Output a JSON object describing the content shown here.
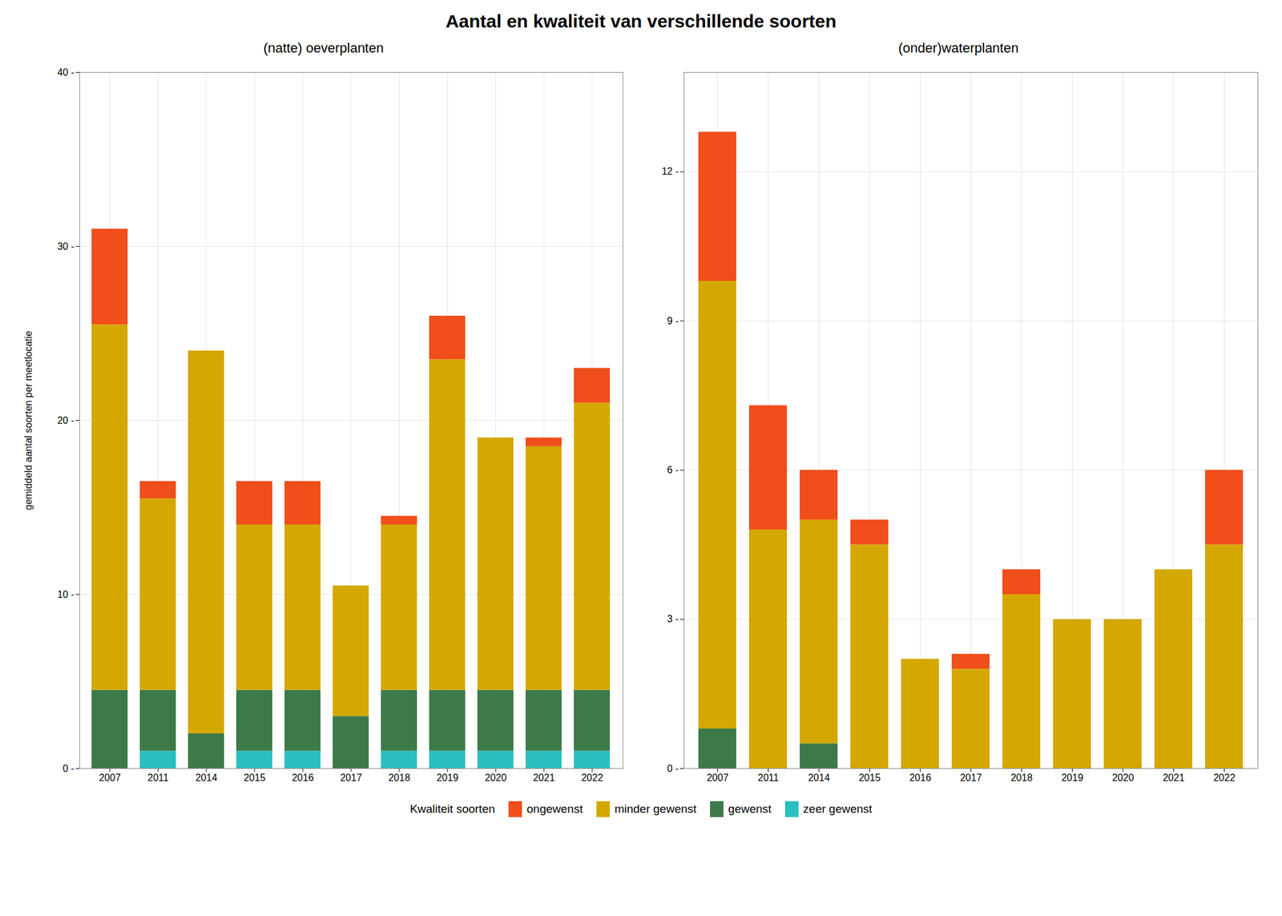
{
  "chart_data": [
    {
      "type": "bar",
      "stacked": true,
      "title": "Aantal en kwaliteit van verschillende soorten",
      "subtitle": "(natte) oeverplanten",
      "ylabel": "gemiddeld aantal soorten per meetlocatie",
      "legend": "bottom",
      "legend_title": "Kwaliteit soorten",
      "grid": true,
      "categories": [
        "2007",
        "2011",
        "2014",
        "2015",
        "2016",
        "2017",
        "2018",
        "2019",
        "2020",
        "2021",
        "2022"
      ],
      "series": [
        {
          "name": "zeer gewenst",
          "color": "#2BBFBF",
          "values": [
            0.0,
            1.0,
            0.0,
            1.0,
            1.0,
            0.0,
            1.0,
            1.0,
            1.0,
            1.0,
            1.0
          ]
        },
        {
          "name": "gewenst",
          "color": "#3D7A4A",
          "values": [
            4.5,
            3.5,
            2.0,
            3.5,
            3.5,
            3.0,
            3.5,
            3.5,
            3.5,
            3.5,
            3.5
          ]
        },
        {
          "name": "minder gewenst",
          "color": "#D4A800",
          "values": [
            21.0,
            11.0,
            22.0,
            9.5,
            9.5,
            7.5,
            9.5,
            19.0,
            14.5,
            14.0,
            16.5
          ]
        },
        {
          "name": "ongewenst",
          "color": "#F04E1A",
          "values": [
            5.5,
            1.0,
            0.0,
            2.5,
            2.5,
            0.0,
            0.5,
            2.5,
            0.0,
            0.5,
            2.0
          ]
        }
      ],
      "ylim": [
        0,
        40
      ],
      "yticks": [
        {
          "value": 0,
          "label": "0 -"
        },
        {
          "value": 10,
          "label": "10 -"
        },
        {
          "value": 20,
          "label": "20 -"
        },
        {
          "value": 30,
          "label": "30 -"
        },
        {
          "value": 40,
          "label": "40 -"
        }
      ]
    },
    {
      "type": "bar",
      "stacked": true,
      "subtitle": "(onder)waterplanten",
      "grid": true,
      "categories": [
        "2007",
        "2011",
        "2014",
        "2015",
        "2016",
        "2017",
        "2018",
        "2019",
        "2020",
        "2021",
        "2022"
      ],
      "series": [
        {
          "name": "zeer gewenst",
          "color": "#2BBFBF",
          "values": [
            0.0,
            0.0,
            0.0,
            0.0,
            0.0,
            0.0,
            0.0,
            0.0,
            0.0,
            0.0,
            0.0
          ]
        },
        {
          "name": "gewenst",
          "color": "#3D7A4A",
          "values": [
            0.8,
            0.0,
            0.5,
            0.0,
            0.0,
            0.0,
            0.0,
            0.0,
            0.0,
            0.0,
            0.0
          ]
        },
        {
          "name": "minder gewenst",
          "color": "#D4A800",
          "values": [
            9.0,
            4.8,
            4.5,
            4.5,
            2.2,
            2.0,
            3.5,
            3.0,
            3.0,
            4.0,
            4.5
          ]
        },
        {
          "name": "ongewenst",
          "color": "#F04E1A",
          "values": [
            3.0,
            2.5,
            1.0,
            0.5,
            0.0,
            0.3,
            0.5,
            0.0,
            0.0,
            0.0,
            1.5
          ]
        }
      ],
      "ylim": [
        0,
        14
      ],
      "yticks": [
        {
          "value": 0,
          "label": "0 -"
        },
        {
          "value": 3,
          "label": "3 -"
        },
        {
          "value": 6,
          "label": "6 -"
        },
        {
          "value": 9,
          "label": "9 -"
        },
        {
          "value": 12,
          "label": "12 -"
        }
      ]
    }
  ]
}
